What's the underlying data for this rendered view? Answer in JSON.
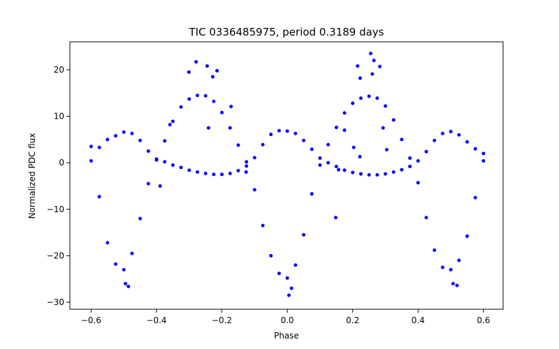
{
  "chart_data": {
    "type": "scatter",
    "title": "TIC 0336485975, period 0.3189 days",
    "xlabel": "Phase",
    "ylabel": "Normalized PDC flux",
    "xlim": [
      -0.665,
      0.66
    ],
    "ylim": [
      -31.5,
      26
    ],
    "xticks": [
      -0.6,
      -0.4,
      -0.2,
      0.0,
      0.2,
      0.4,
      0.6
    ],
    "xtick_labels": [
      "−0.6",
      "−0.4",
      "−0.2",
      "0.0",
      "0.2",
      "0.4",
      "0.6"
    ],
    "yticks": [
      -30,
      -20,
      -10,
      0,
      10,
      20
    ],
    "ytick_labels": [
      "−30",
      "−20",
      "−10",
      "0",
      "10",
      "20"
    ],
    "grid": false,
    "legend": "none",
    "marker_color": "#0000ff",
    "series": [
      {
        "values_x": [
          -0.6,
          -0.575,
          -0.55,
          -0.525,
          -0.5,
          -0.475,
          -0.45,
          -0.425,
          -0.4,
          -0.375,
          -0.35,
          -0.325,
          -0.3,
          -0.275,
          -0.25,
          -0.225,
          -0.2,
          -0.175,
          -0.15,
          -0.125,
          -0.1,
          -0.075,
          -0.05,
          -0.025,
          0.0,
          0.025,
          0.05,
          0.075,
          0.1,
          0.125,
          0.15,
          0.175,
          0.2,
          0.225,
          0.25,
          0.275,
          0.3,
          0.325,
          0.35,
          0.375,
          0.4,
          0.425,
          0.45,
          0.475,
          0.5,
          0.525,
          0.55,
          0.575,
          0.6
        ],
        "values_y": [
          0.4,
          -7.3,
          -17.2,
          -21.8,
          -23.0,
          -19.5,
          -12.0,
          -4.5,
          0.6,
          4.7,
          8.9,
          12.0,
          13.7,
          14.5,
          14.4,
          13.2,
          10.8,
          7.5,
          3.8,
          0.2,
          -5.8,
          -13.5,
          -20.0,
          -23.8,
          -24.8,
          -22.0,
          -15.5,
          -6.7,
          -0.5,
          3.9,
          7.6,
          10.7,
          12.8,
          13.9,
          14.3,
          13.9,
          12.2,
          9.2,
          5.0,
          1.0,
          -4.3,
          -11.8,
          -18.8,
          -22.5,
          -23.0,
          -21.0,
          -15.8,
          -7.5,
          0.4
        ]
      },
      {
        "values_x": [
          -0.6,
          -0.575,
          -0.55,
          -0.525,
          -0.5,
          -0.475,
          -0.45,
          -0.425,
          -0.4,
          -0.375,
          -0.35,
          -0.325,
          -0.3,
          -0.275,
          -0.25,
          -0.225,
          -0.2,
          -0.175,
          -0.15,
          -0.125,
          -0.1,
          -0.075,
          -0.05,
          -0.025,
          0.0,
          0.025,
          0.05,
          0.075,
          0.1,
          0.125,
          0.15,
          0.175,
          0.2,
          0.225,
          0.25,
          0.275,
          0.3,
          0.325,
          0.35,
          0.375,
          0.4,
          0.425,
          0.45,
          0.475,
          0.5,
          0.525,
          0.55,
          0.575,
          0.6
        ],
        "values_y": [
          3.5,
          3.3,
          5.0,
          5.8,
          6.6,
          6.3,
          4.8,
          2.5,
          0.8,
          0.2,
          -0.5,
          -1.0,
          -1.6,
          -2.0,
          -2.3,
          -2.5,
          -2.5,
          -2.3,
          -1.7,
          -0.7,
          1.1,
          3.9,
          6.1,
          6.9,
          6.8,
          6.3,
          4.8,
          2.9,
          1.0,
          0.0,
          -0.8,
          -1.6,
          -2.1,
          -2.4,
          -2.6,
          -2.6,
          -2.4,
          -2.0,
          -1.5,
          -0.8,
          0.4,
          2.4,
          4.8,
          6.3,
          6.7,
          6.0,
          4.5,
          3.0,
          2.0
        ]
      },
      {
        "values_x": [
          -0.279,
          -0.245,
          -0.215,
          -0.228,
          -0.486,
          -0.495,
          0.005,
          0.013,
          0.215,
          0.255,
          0.265,
          0.283,
          0.223,
          0.26,
          -0.241,
          0.148,
          0.157,
          0.175,
          0.203,
          0.293,
          0.304,
          0.519,
          0.507,
          -0.301,
          -0.359,
          -0.172,
          -0.126,
          0.222,
          -0.389
        ],
        "values_y": [
          21.7,
          20.8,
          19.8,
          18.5,
          -26.6,
          -26.0,
          -28.5,
          -27.0,
          20.8,
          23.5,
          22.0,
          20.7,
          18.2,
          19.1,
          7.5,
          -11.8,
          -1.5,
          7.0,
          3.3,
          7.5,
          2.8,
          -26.4,
          -26.0,
          19.5,
          8.2,
          12.1,
          -2.0,
          1.3,
          -5.0
        ]
      }
    ]
  }
}
